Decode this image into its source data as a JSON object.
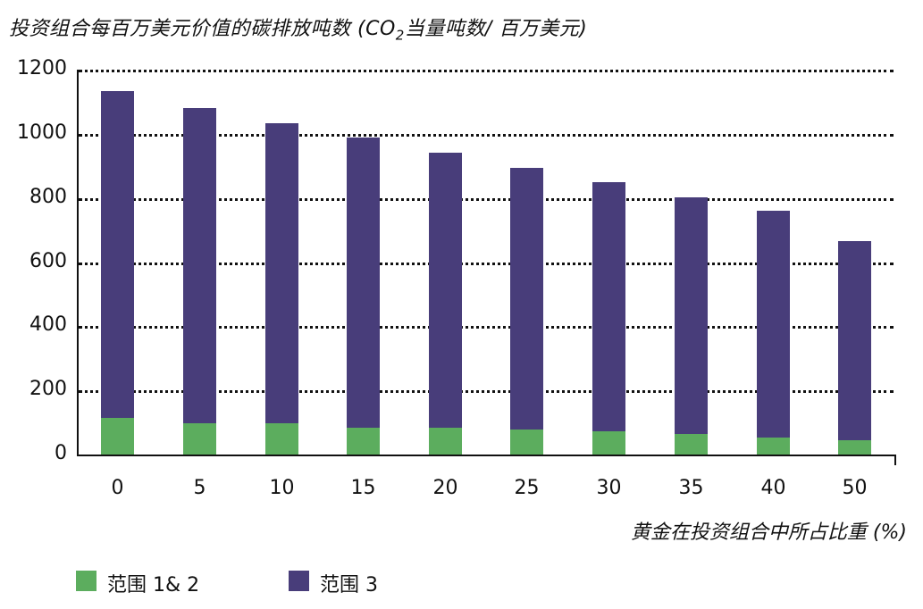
{
  "chart_data": {
    "type": "bar",
    "stacked": true,
    "title": "投资组合每百万美元价值的碳排放吨数 (CO₂当量吨数/百万美元)",
    "title_parts": {
      "pre": "投资组合每百万美元价值的碳排放吨数 (CO",
      "sub": "2",
      "post": "当量吨数/ 百万美元)"
    },
    "xlabel": "黄金在投资组合中所占比重 (%)",
    "ylabel": "",
    "ylim": [
      0,
      1200
    ],
    "yticks": [
      "0",
      "200",
      "400",
      "600",
      "800",
      "1000",
      "1200"
    ],
    "grid": "horizontal dotted",
    "legend_position": "bottom-left",
    "categories": [
      "0",
      "5",
      "10",
      "15",
      "20",
      "25",
      "30",
      "35",
      "40",
      "50"
    ],
    "series": [
      {
        "name": "范围 1& 2",
        "color": "#5cad5e",
        "values": [
          117,
          100,
          100,
          86,
          86,
          81,
          75,
          67,
          56,
          47
        ]
      },
      {
        "name": "范围 3",
        "color": "#483d7a",
        "values": [
          1019,
          983,
          936,
          906,
          858,
          816,
          778,
          739,
          708,
          620
        ]
      }
    ],
    "totals": [
      1136,
      1083,
      1036,
      992,
      944,
      897,
      853,
      806,
      764,
      667
    ]
  }
}
